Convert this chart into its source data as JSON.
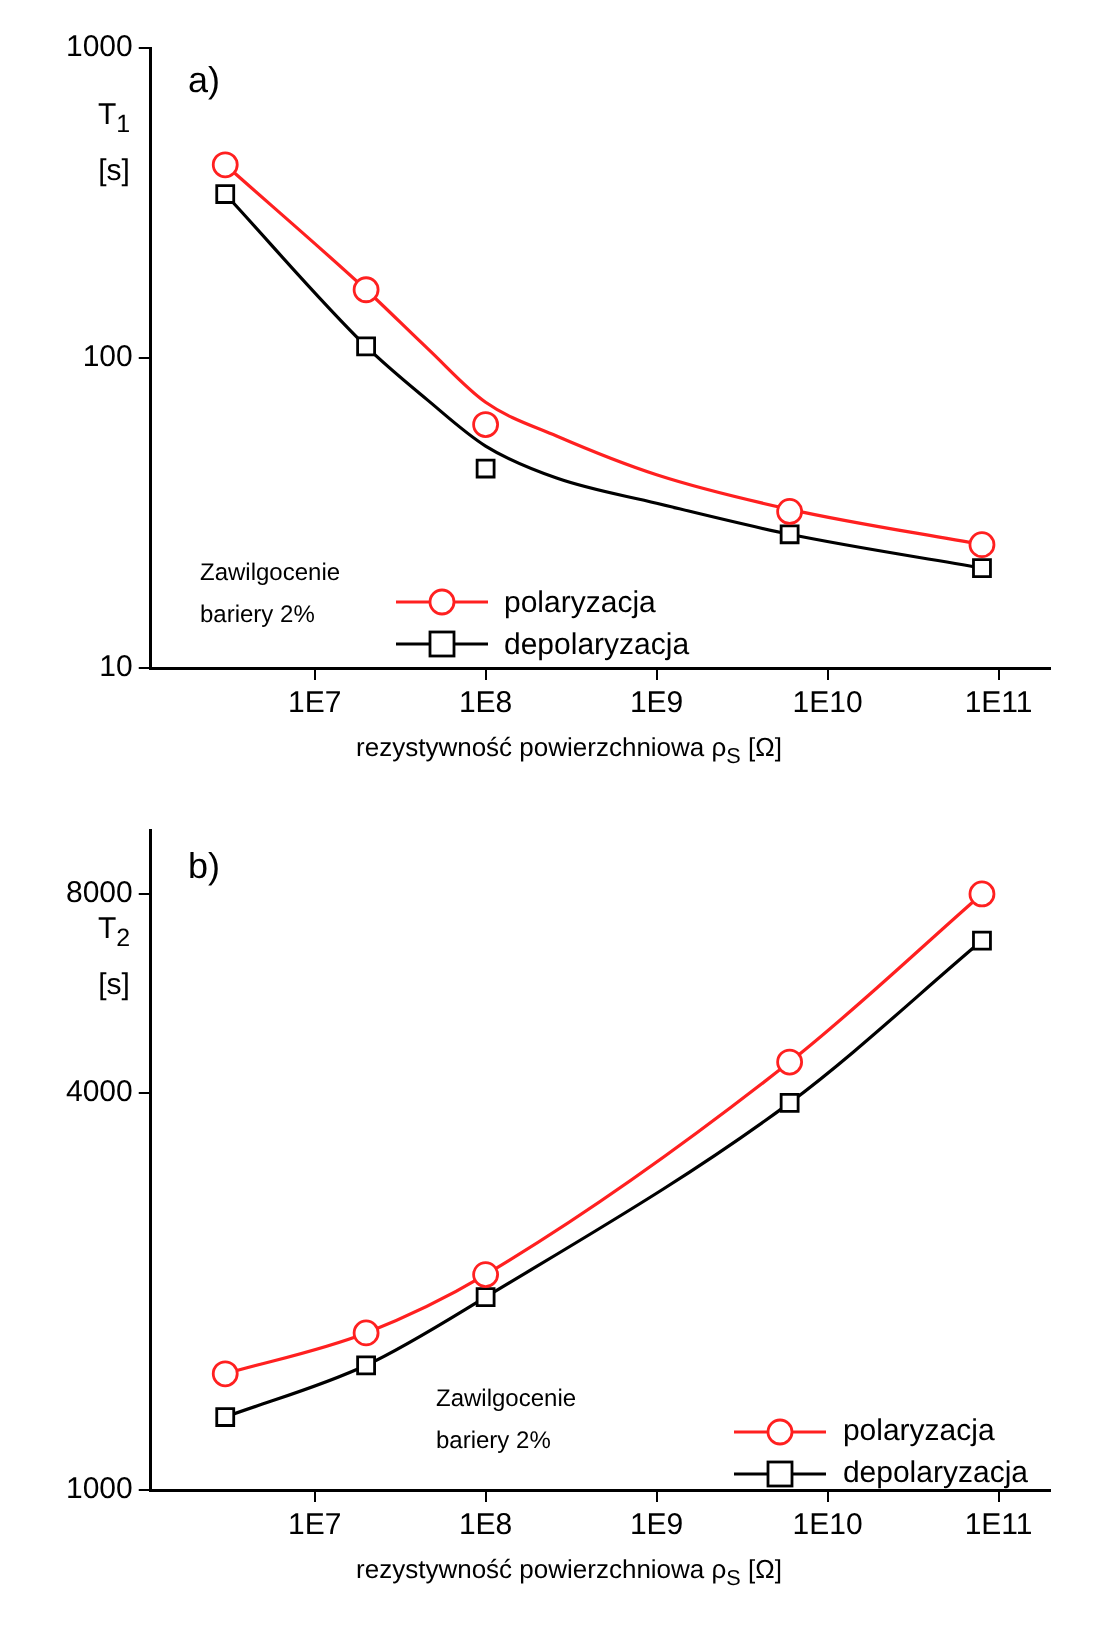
{
  "chart_data": [
    {
      "type": "scatter",
      "ylabel": "T$_{1}$ [s]",
      "xlabel": "rezystywność powierzchniowa ρ$_{S}$ [Ω]",
      "annotations": [
        "a)",
        "Zawilgocenie\nbariery 2%"
      ],
      "log": "xy",
      "xlim": [
        1100000.0,
        200000000000.0
      ],
      "xticks": [
        {
          "value": 10000000.0,
          "label": "1E7"
        },
        {
          "value": 100000000.0,
          "label": "1E8"
        },
        {
          "value": 1000000000.0,
          "label": "1E9"
        },
        {
          "value": 10000000000.0,
          "label": "1E10"
        },
        {
          "value": 100000000000.0,
          "label": "1E11"
        }
      ],
      "ylim": [
        10,
        1000
      ],
      "yticks": [
        10,
        100,
        1000
      ],
      "grid": false,
      "legend": "bottom",
      "x": [
        3000000.0,
        20000000.0,
        100000000.0,
        6000000000.0,
        80000000000.0
      ],
      "series": [
        {
          "name": "polaryzacja",
          "marker": "circle",
          "color": "#ff2020",
          "values": [
            420,
            166,
            61,
            32,
            25
          ]
        },
        {
          "name": "depolaryzacja",
          "marker": "square",
          "color": "#000000",
          "values": [
            338,
            109,
            44,
            27,
            21
          ]
        },
        {
          "type": "line",
          "color": "#ff2020",
          "x": [
            3000000.0,
            20000000.0,
            46000000.0,
            100000000.0,
            260000000.0,
            1000000000.0,
            6000000000.0,
            80000000000.0
          ],
          "values": [
            420,
            166,
            107,
            72,
            56,
            42,
            32.5,
            25
          ]
        },
        {
          "type": "line",
          "color": "#000000",
          "x": [
            3000000.0,
            20000000.0,
            46000000.0,
            100000000.0,
            260000000.0,
            1000000000.0,
            6000000000.0,
            80000000000.0
          ],
          "values": [
            338,
            109,
            73,
            52,
            41,
            34,
            27,
            21
          ]
        }
      ]
    },
    {
      "type": "scatter",
      "ylabel": "T$_{2}$ [s]",
      "xlabel": "rezystywność powierzchniowa ρ$_{S}$ [Ω]",
      "annotations": [
        "b)",
        "Zawilgocenie\nbariery 2%"
      ],
      "log": "xy",
      "xlim": [
        1100000.0,
        200000000000.0
      ],
      "xticks": [
        {
          "value": 10000000.0,
          "label": "1E7"
        },
        {
          "value": 100000000.0,
          "label": "1E8"
        },
        {
          "value": 1000000000.0,
          "label": "1E9"
        },
        {
          "value": 10000000000.0,
          "label": "1E10"
        },
        {
          "value": 100000000000.0,
          "label": "1E11"
        }
      ],
      "ylim": [
        1000,
        10000
      ],
      "yticks": [
        1000,
        4000,
        8000
      ],
      "grid": false,
      "legend": "bottom right",
      "x": [
        3000000.0,
        20000000.0,
        100000000.0,
        6000000000.0,
        80000000000.0
      ],
      "series": [
        {
          "name": "polaryzacja",
          "marker": "circle",
          "color": "#ff2020",
          "values": [
            1500,
            1730,
            2120,
            4450,
            8000
          ]
        },
        {
          "name": "depolaryzacja",
          "marker": "square",
          "color": "#000000",
          "values": [
            1290,
            1545,
            1960,
            3860,
            6800
          ]
        },
        {
          "type": "line",
          "color": "#ff2020",
          "values": [
            1500,
            1730,
            2120,
            4450,
            8000
          ]
        },
        {
          "type": "line",
          "color": "#000000",
          "values": [
            1290,
            1545,
            1960,
            3860,
            6800
          ]
        }
      ]
    }
  ]
}
